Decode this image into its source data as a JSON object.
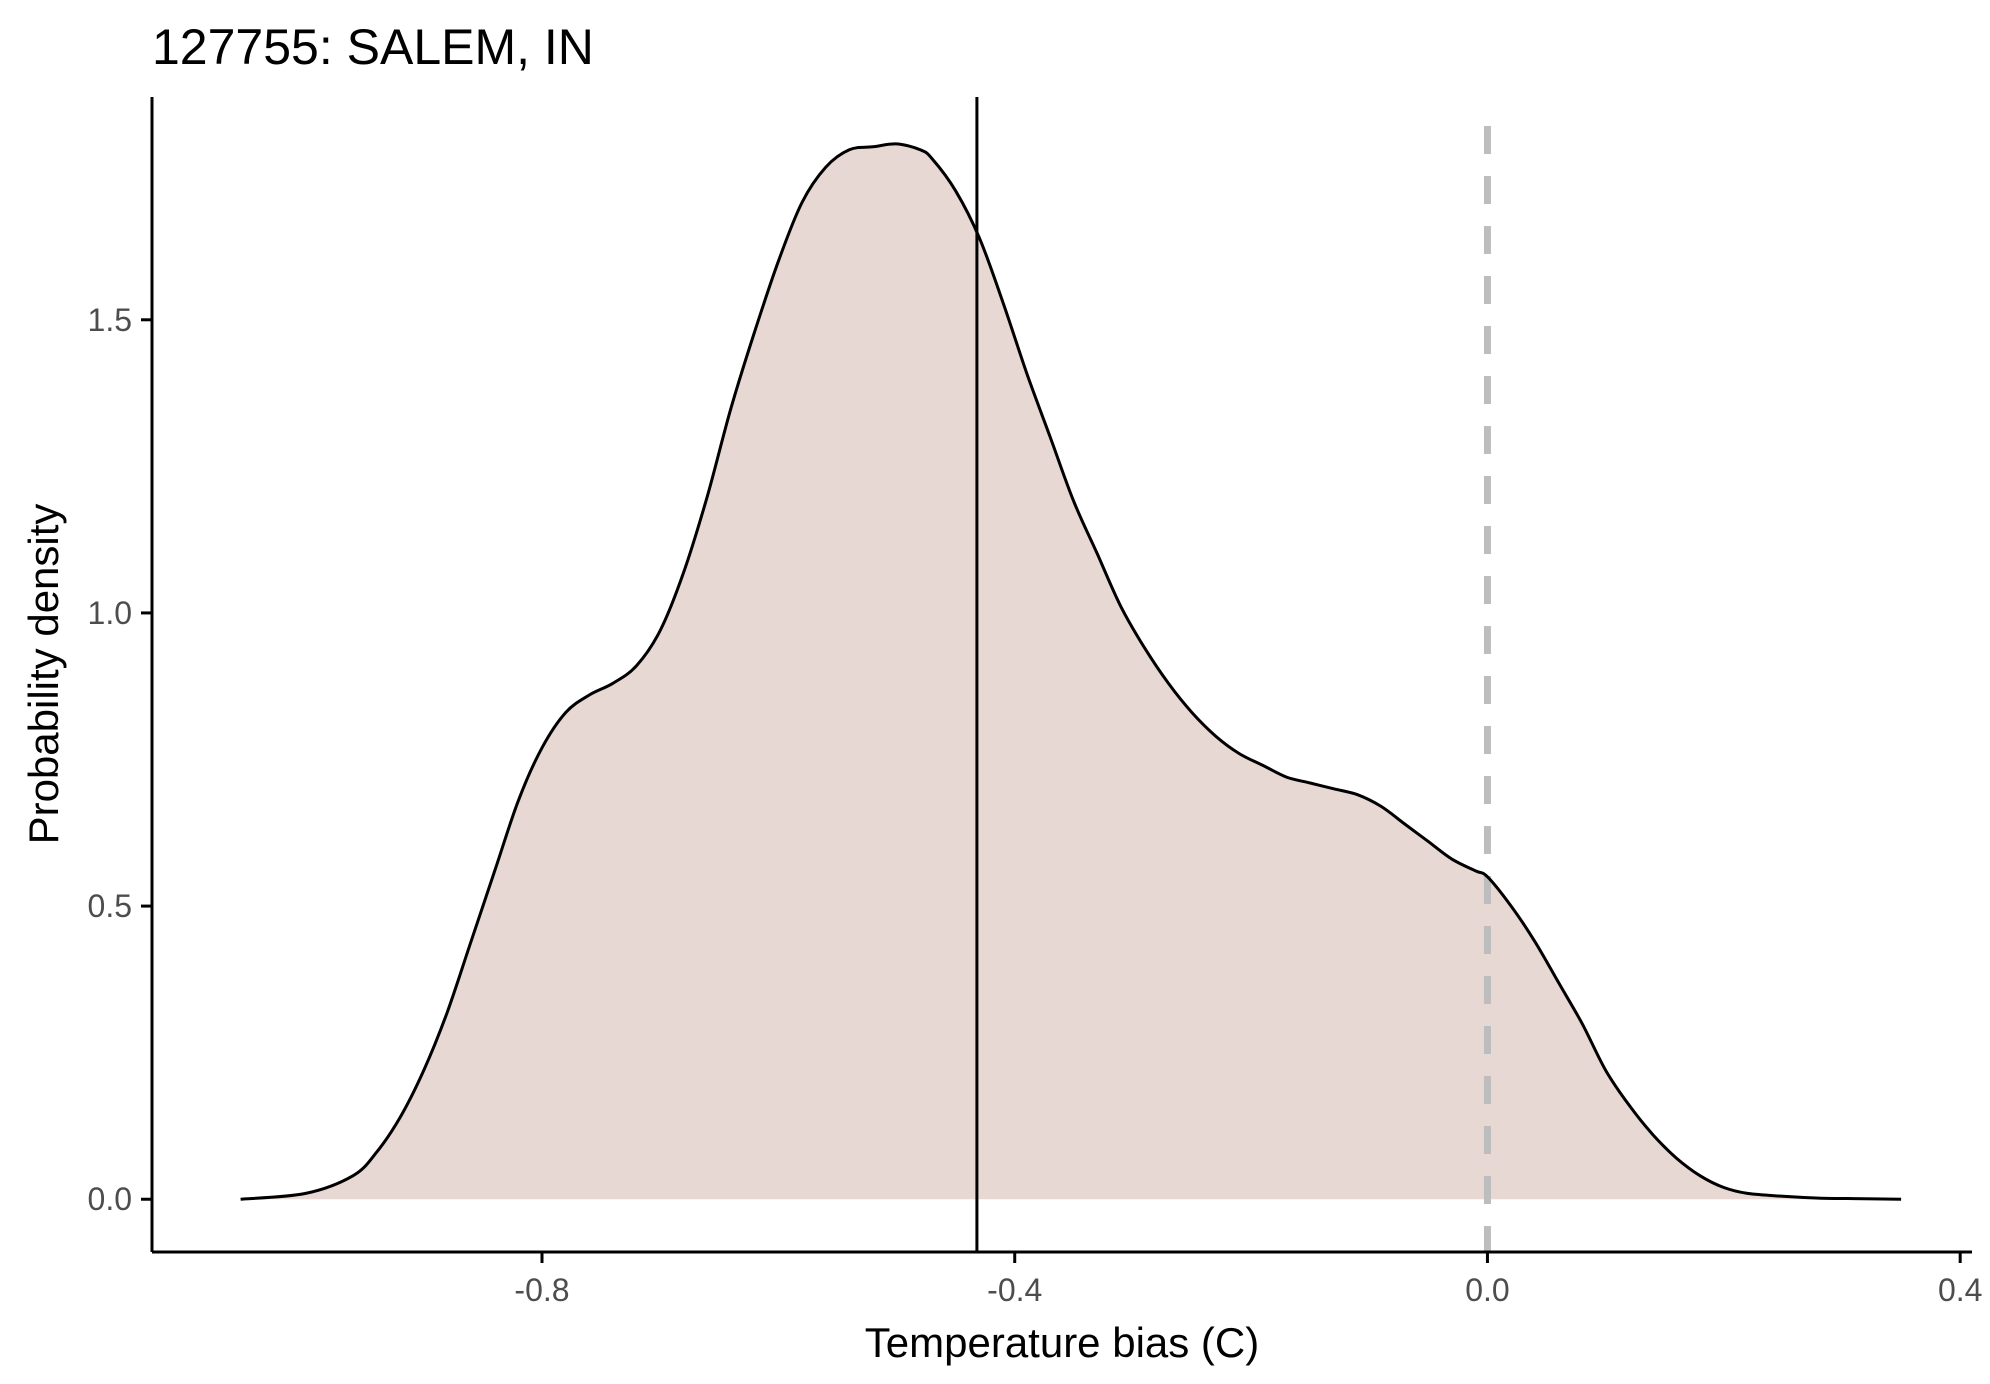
{
  "chart_data": {
    "type": "area",
    "title": "127755: SALEM, IN",
    "xlabel": "Temperature bias (C)",
    "ylabel": "Probability density",
    "xlim": [
      -1.13,
      0.41
    ],
    "ylim": [
      -0.09,
      1.88
    ],
    "x_ticks": [
      -0.8,
      -0.4,
      0.0,
      0.4
    ],
    "x_tick_labels": [
      "-0.8",
      "-0.4",
      "0.0",
      "0.4"
    ],
    "y_ticks": [
      0.0,
      0.5,
      1.0,
      1.5
    ],
    "y_tick_labels": [
      "0.0",
      "0.5",
      "1.0",
      "1.5"
    ],
    "grid": false,
    "legend": "none",
    "fill_color": "#e8d8d3",
    "line_color": "#000000",
    "mean_line": {
      "x": -0.432,
      "color": "#000000",
      "style": "solid"
    },
    "reference_line": {
      "x": 0.0,
      "color": "#bdbdbd",
      "style": "dashed"
    },
    "series": [
      {
        "x": [
          -1.055,
          -1.0,
          -0.96,
          -0.94,
          -0.92,
          -0.9,
          -0.88,
          -0.86,
          -0.84,
          -0.82,
          -0.8,
          -0.78,
          -0.76,
          -0.74,
          -0.72,
          -0.7,
          -0.68,
          -0.66,
          -0.64,
          -0.62,
          -0.6,
          -0.58,
          -0.56,
          -0.54,
          -0.52,
          -0.5,
          -0.48,
          -0.47,
          -0.45,
          -0.43,
          -0.41,
          -0.39,
          -0.37,
          -0.35,
          -0.33,
          -0.31,
          -0.29,
          -0.27,
          -0.25,
          -0.23,
          -0.21,
          -0.19,
          -0.17,
          -0.15,
          -0.13,
          -0.11,
          -0.09,
          -0.07,
          -0.05,
          -0.03,
          -0.01,
          0.0,
          0.02,
          0.04,
          0.06,
          0.08,
          0.1,
          0.12,
          0.14,
          0.16,
          0.18,
          0.2,
          0.22,
          0.25,
          0.28,
          0.31,
          0.35
        ],
        "y": [
          0.0,
          0.01,
          0.04,
          0.08,
          0.14,
          0.22,
          0.32,
          0.44,
          0.56,
          0.68,
          0.77,
          0.83,
          0.86,
          0.88,
          0.91,
          0.97,
          1.07,
          1.2,
          1.35,
          1.48,
          1.6,
          1.7,
          1.76,
          1.79,
          1.795,
          1.8,
          1.79,
          1.775,
          1.72,
          1.64,
          1.53,
          1.41,
          1.3,
          1.19,
          1.1,
          1.01,
          0.94,
          0.88,
          0.83,
          0.79,
          0.76,
          0.74,
          0.72,
          0.71,
          0.7,
          0.69,
          0.67,
          0.64,
          0.61,
          0.58,
          0.56,
          0.55,
          0.5,
          0.44,
          0.37,
          0.3,
          0.22,
          0.16,
          0.11,
          0.07,
          0.04,
          0.02,
          0.01,
          0.005,
          0.002,
          0.001,
          0.0
        ]
      }
    ]
  }
}
